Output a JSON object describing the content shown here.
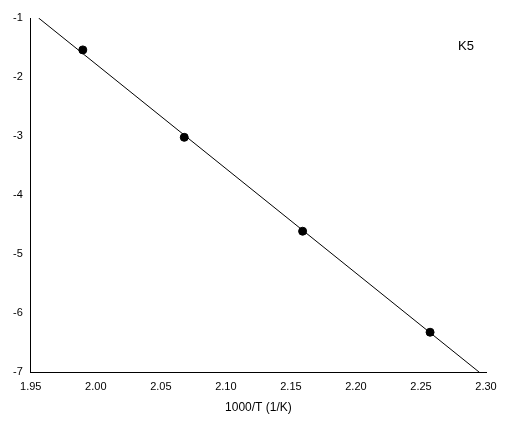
{
  "chart_data": {
    "type": "scatter",
    "x_label": "1000/T (1/K)",
    "annotations": [
      "K5"
    ],
    "xlim": [
      1.95,
      2.3
    ],
    "xticks": [
      {
        "value": 1.95,
        "label": "1.95"
      },
      {
        "value": 2.0,
        "label": "2.00"
      },
      {
        "value": 2.05,
        "label": "2.05"
      },
      {
        "value": 2.1,
        "label": "2.10"
      },
      {
        "value": 2.15,
        "label": "2.15"
      },
      {
        "value": 2.2,
        "label": "2.20"
      },
      {
        "value": 2.25,
        "label": "2.25"
      },
      {
        "value": 2.3,
        "label": "2.30"
      }
    ],
    "ylim": [
      -7,
      -1
    ],
    "yticks": [
      -7,
      -6,
      -5,
      -4,
      -3,
      -2,
      -1
    ],
    "grid": false,
    "series": [
      {
        "type": "scatter",
        "marker": "circle",
        "color": "#000000",
        "x": [
          1.99,
          2.068,
          2.159,
          2.257
        ],
        "values": [
          -1.54,
          -3.02,
          -4.61,
          -6.32
        ]
      },
      {
        "type": "line",
        "line_style": "solid",
        "color": "#000000",
        "x": [
          1.956,
          2.295
        ],
        "values": [
          -1.0,
          -7.0
        ]
      }
    ]
  }
}
